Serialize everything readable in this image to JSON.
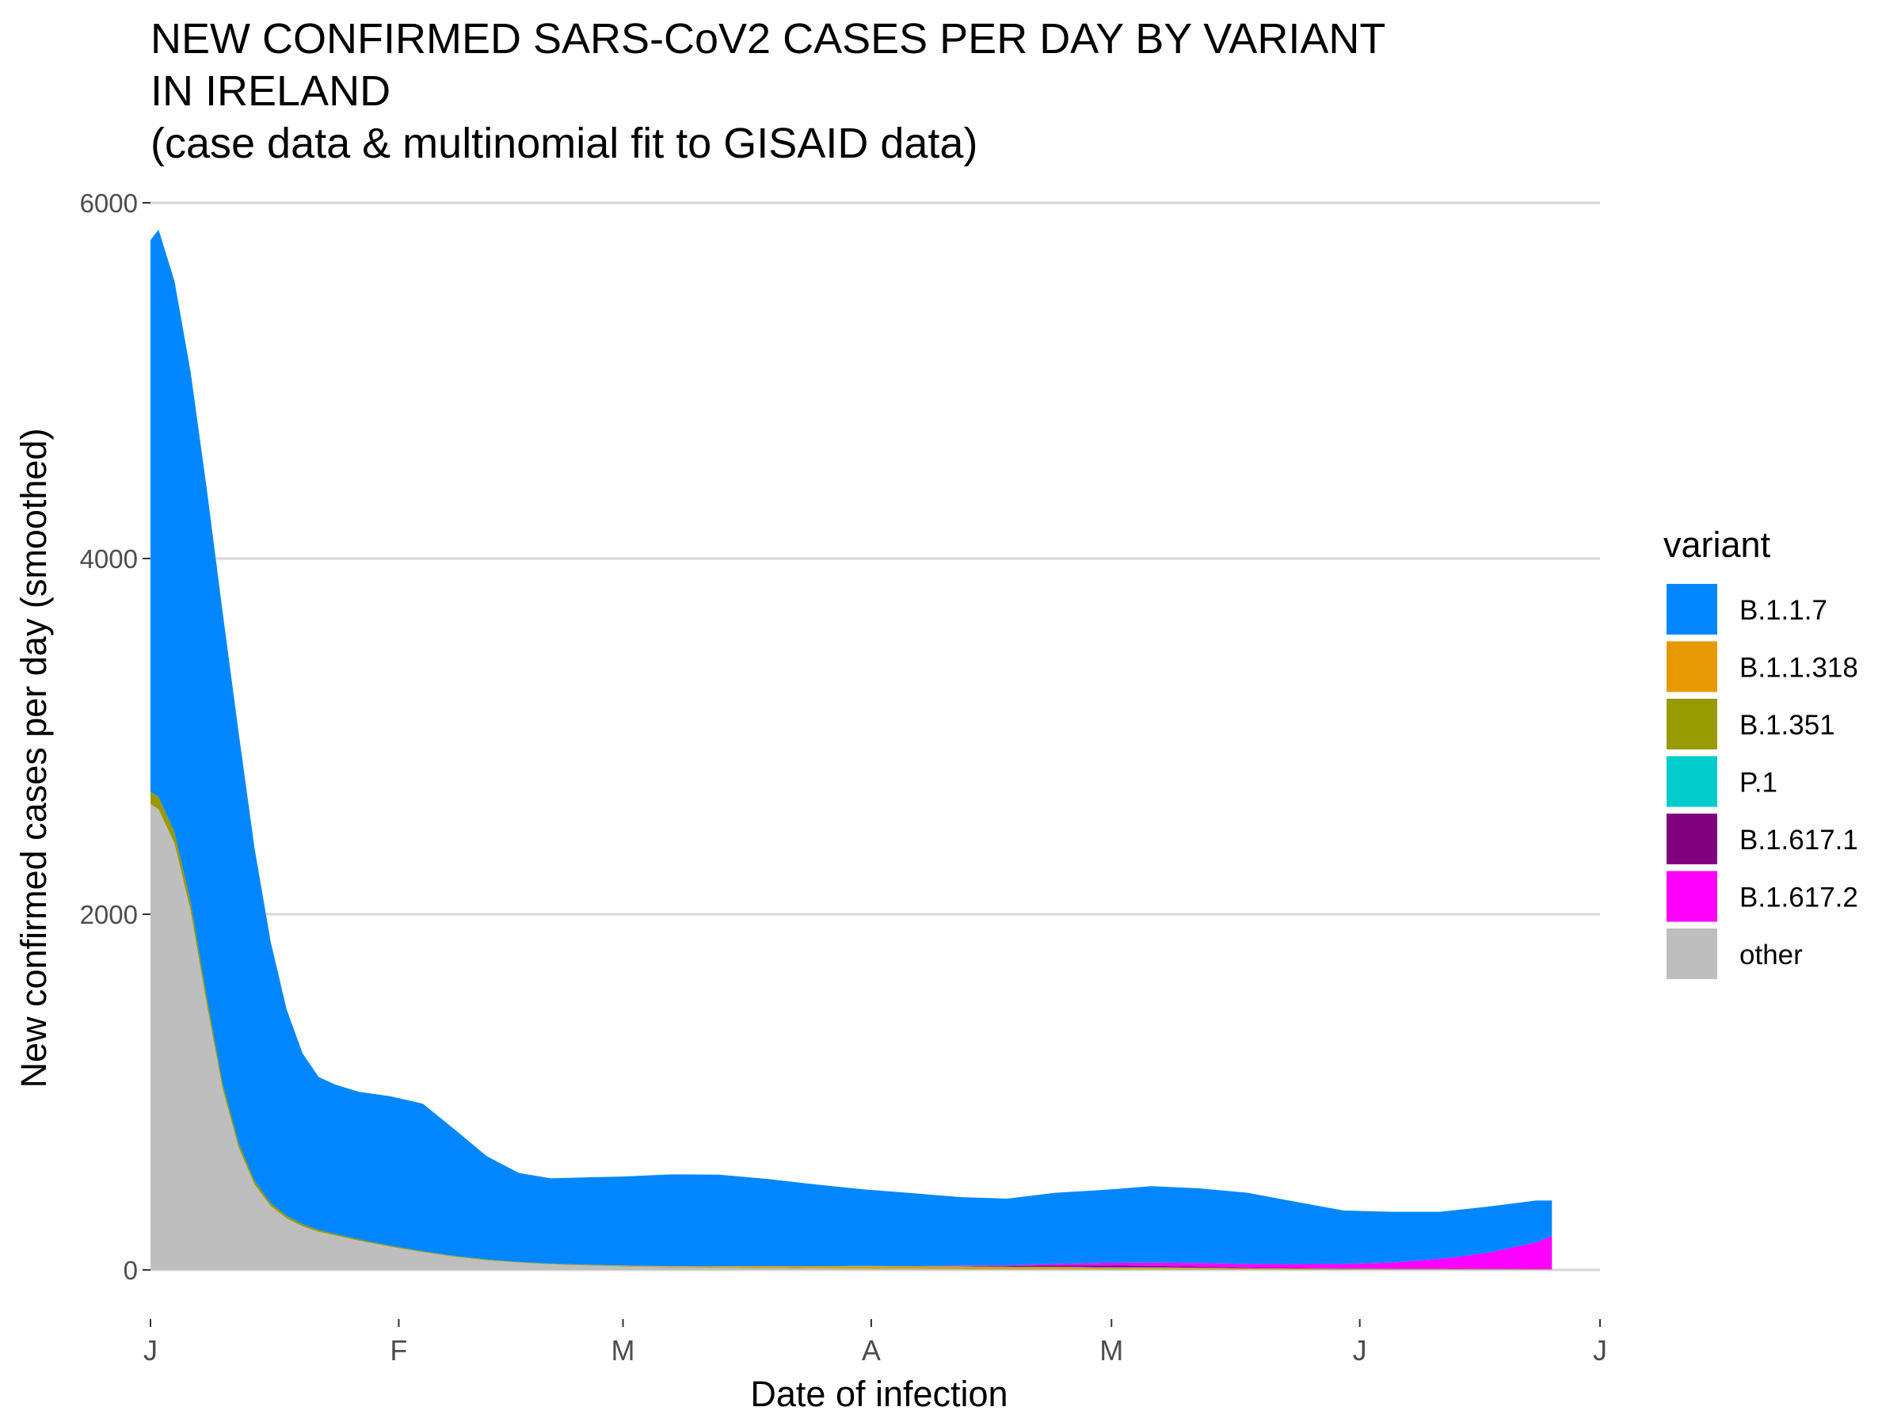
{
  "chart_data": {
    "type": "area",
    "stacked": true,
    "title": "NEW CONFIRMED SARS-CoV2 CASES PER DAY BY VARIANT\nIN IRELAND\n(case data & multinomial fit to GISAID data)",
    "xlabel": "Date of infection",
    "ylabel": "New confirmed cases per day (smoothed)",
    "xlim": [
      "2021-01-01",
      "2021-07-01"
    ],
    "ylim": [
      0,
      6000
    ],
    "x_ticks": [
      {
        "date": "2021-01-01",
        "label": "J"
      },
      {
        "date": "2021-02-01",
        "label": "F"
      },
      {
        "date": "2021-03-01",
        "label": "M"
      },
      {
        "date": "2021-04-01",
        "label": "A"
      },
      {
        "date": "2021-05-01",
        "label": "M"
      },
      {
        "date": "2021-06-01",
        "label": "J"
      },
      {
        "date": "2021-07-01",
        "label": "J"
      }
    ],
    "y_ticks": [
      0,
      2000,
      4000,
      6000
    ],
    "grid": {
      "horizontal_major": true,
      "vertical": false
    },
    "legend": {
      "title": "variant",
      "position": "right"
    },
    "x": [
      "2021-01-01",
      "2021-01-02",
      "2021-01-04",
      "2021-01-06",
      "2021-01-08",
      "2021-01-10",
      "2021-01-12",
      "2021-01-14",
      "2021-01-16",
      "2021-01-18",
      "2021-01-20",
      "2021-01-22",
      "2021-01-24",
      "2021-01-27",
      "2021-01-31",
      "2021-02-04",
      "2021-02-08",
      "2021-02-12",
      "2021-02-16",
      "2021-02-20",
      "2021-02-24",
      "2021-03-01",
      "2021-03-07",
      "2021-03-13",
      "2021-03-19",
      "2021-03-25",
      "2021-03-31",
      "2021-04-06",
      "2021-04-12",
      "2021-04-18",
      "2021-04-24",
      "2021-04-30",
      "2021-05-06",
      "2021-05-12",
      "2021-05-18",
      "2021-05-24",
      "2021-05-30",
      "2021-06-05",
      "2021-06-11",
      "2021-06-17",
      "2021-06-23",
      "2021-06-25"
    ],
    "series": [
      {
        "name": "other",
        "color": "#BEBEBE",
        "values": [
          2620,
          2590,
          2400,
          2020,
          1500,
          1020,
          690,
          480,
          360,
          290,
          245,
          215,
          195,
          165,
          130,
          100,
          75,
          55,
          42,
          32,
          26,
          20,
          15,
          12,
          10,
          8,
          7,
          6,
          5,
          4,
          4,
          3,
          3,
          3,
          3,
          2,
          2,
          2,
          2,
          2,
          1,
          1
        ]
      },
      {
        "name": "B.1.351",
        "color": "#999900",
        "values": [
          70,
          70,
          60,
          50,
          40,
          30,
          24,
          20,
          16,
          14,
          12,
          10,
          8,
          7,
          6,
          5,
          4,
          4,
          3,
          3,
          3,
          3,
          3,
          3,
          3,
          2,
          2,
          2,
          2,
          2,
          2,
          2,
          2,
          2,
          1,
          1,
          1,
          1,
          1,
          1,
          1,
          1
        ]
      },
      {
        "name": "B.1.1.318",
        "color": "#E69900",
        "values": [
          0,
          0,
          0,
          0,
          0,
          0,
          0,
          0,
          0,
          0,
          0,
          0,
          0,
          0,
          0,
          0,
          0,
          0,
          0,
          0,
          1,
          2,
          3,
          5,
          8,
          10,
          12,
          12,
          12,
          10,
          10,
          8,
          8,
          6,
          5,
          4,
          3,
          2,
          2,
          1,
          1,
          1
        ]
      },
      {
        "name": "P.1",
        "color": "#00CCCC",
        "values": [
          0,
          0,
          0,
          0,
          0,
          0,
          0,
          0,
          0,
          0,
          0,
          0,
          0,
          0,
          0,
          0,
          0,
          0,
          0,
          0,
          0,
          0,
          1,
          1,
          1,
          1,
          2,
          2,
          2,
          2,
          2,
          2,
          2,
          2,
          1,
          1,
          1,
          1,
          1,
          1,
          1,
          1
        ]
      },
      {
        "name": "B.1.617.1",
        "color": "#800080",
        "values": [
          0,
          0,
          0,
          0,
          0,
          0,
          0,
          0,
          0,
          0,
          0,
          0,
          0,
          0,
          0,
          0,
          0,
          0,
          0,
          0,
          0,
          0,
          0,
          0,
          0,
          0,
          0,
          0,
          2,
          4,
          8,
          10,
          8,
          6,
          4,
          3,
          2,
          1,
          1,
          1,
          1,
          1
        ]
      },
      {
        "name": "B.1.617.2",
        "color": "#FF00FF",
        "values": [
          0,
          0,
          0,
          0,
          0,
          0,
          0,
          0,
          0,
          0,
          0,
          0,
          0,
          0,
          0,
          0,
          0,
          0,
          0,
          0,
          0,
          0,
          0,
          0,
          0,
          0,
          0,
          0,
          2,
          4,
          8,
          15,
          18,
          20,
          20,
          22,
          25,
          35,
          55,
          90,
          150,
          185
        ]
      },
      {
        "name": "B.1.1.7",
        "color": "#0087FF",
        "values": [
          3100,
          3190,
          3100,
          2980,
          2860,
          2650,
          2310,
          1870,
          1470,
          1160,
          960,
          860,
          840,
          830,
          840,
          830,
          710,
          580,
          500,
          480,
          490,
          500,
          515,
          515,
          490,
          460,
          430,
          410,
          385,
          375,
          400,
          410,
          430,
          420,
          400,
          350,
          300,
          285,
          265,
          260,
          235,
          200
        ]
      }
    ]
  }
}
